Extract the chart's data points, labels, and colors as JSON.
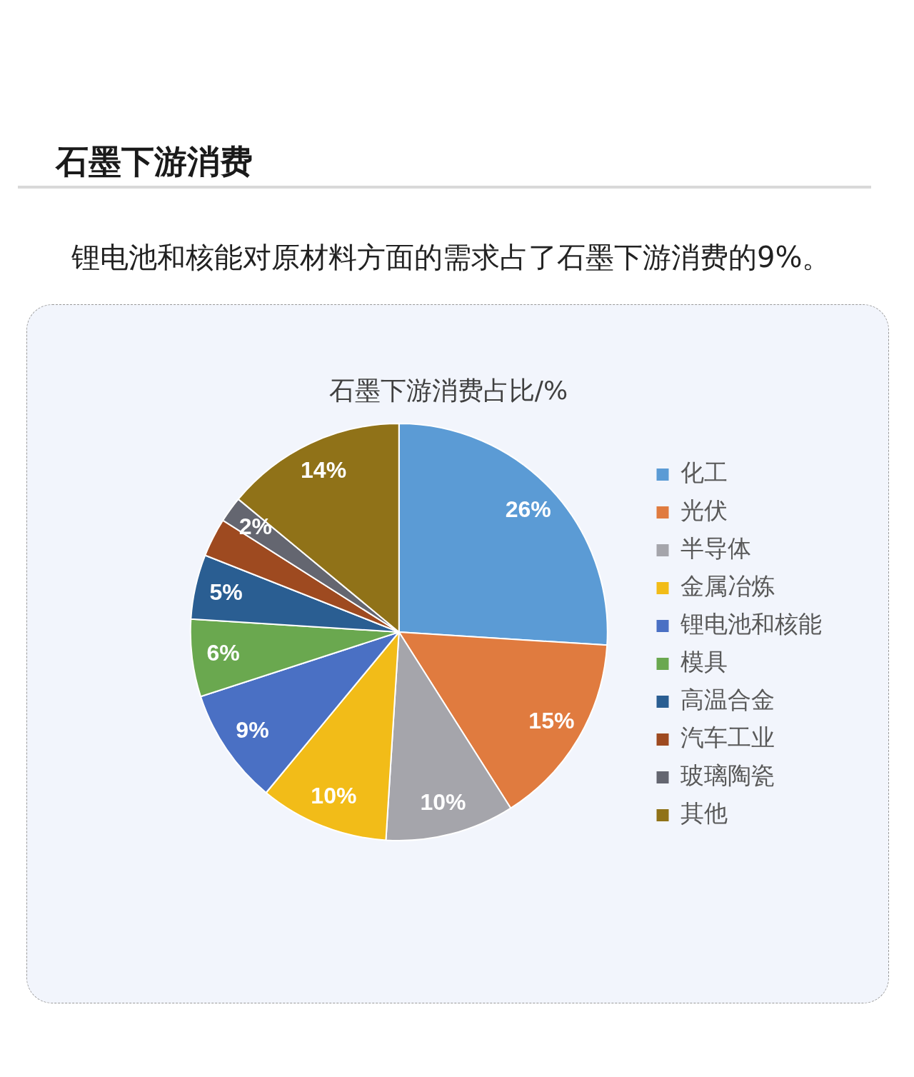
{
  "chart_data": {
    "type": "pie",
    "title": "石墨下游消费占比/%",
    "subtitle": "锂电池和核能对原材料方面的需求占了石墨下游消费的9%。",
    "annotations": [
      "石墨下游消费"
    ],
    "categories": [
      "化工",
      "光伏",
      "半导体",
      "金属冶炼",
      "锂电池和核能",
      "模具",
      "高温合金",
      "汽车工业",
      "玻璃陶瓷",
      "其他"
    ],
    "values": [
      26,
      15,
      10,
      10,
      9,
      6,
      5,
      3,
      2,
      14
    ],
    "colors": [
      "#5b9bd5",
      "#e07b3f",
      "#a5a5ab",
      "#f2bc18",
      "#4a70c4",
      "#6aa84f",
      "#2a5e92",
      "#9e4a20",
      "#646670",
      "#907218"
    ],
    "value_labels": [
      "26%",
      "15%",
      "10%",
      "10%",
      "9%",
      "6%",
      "5%",
      null,
      "2%",
      "14%"
    ],
    "legend": "right"
  }
}
